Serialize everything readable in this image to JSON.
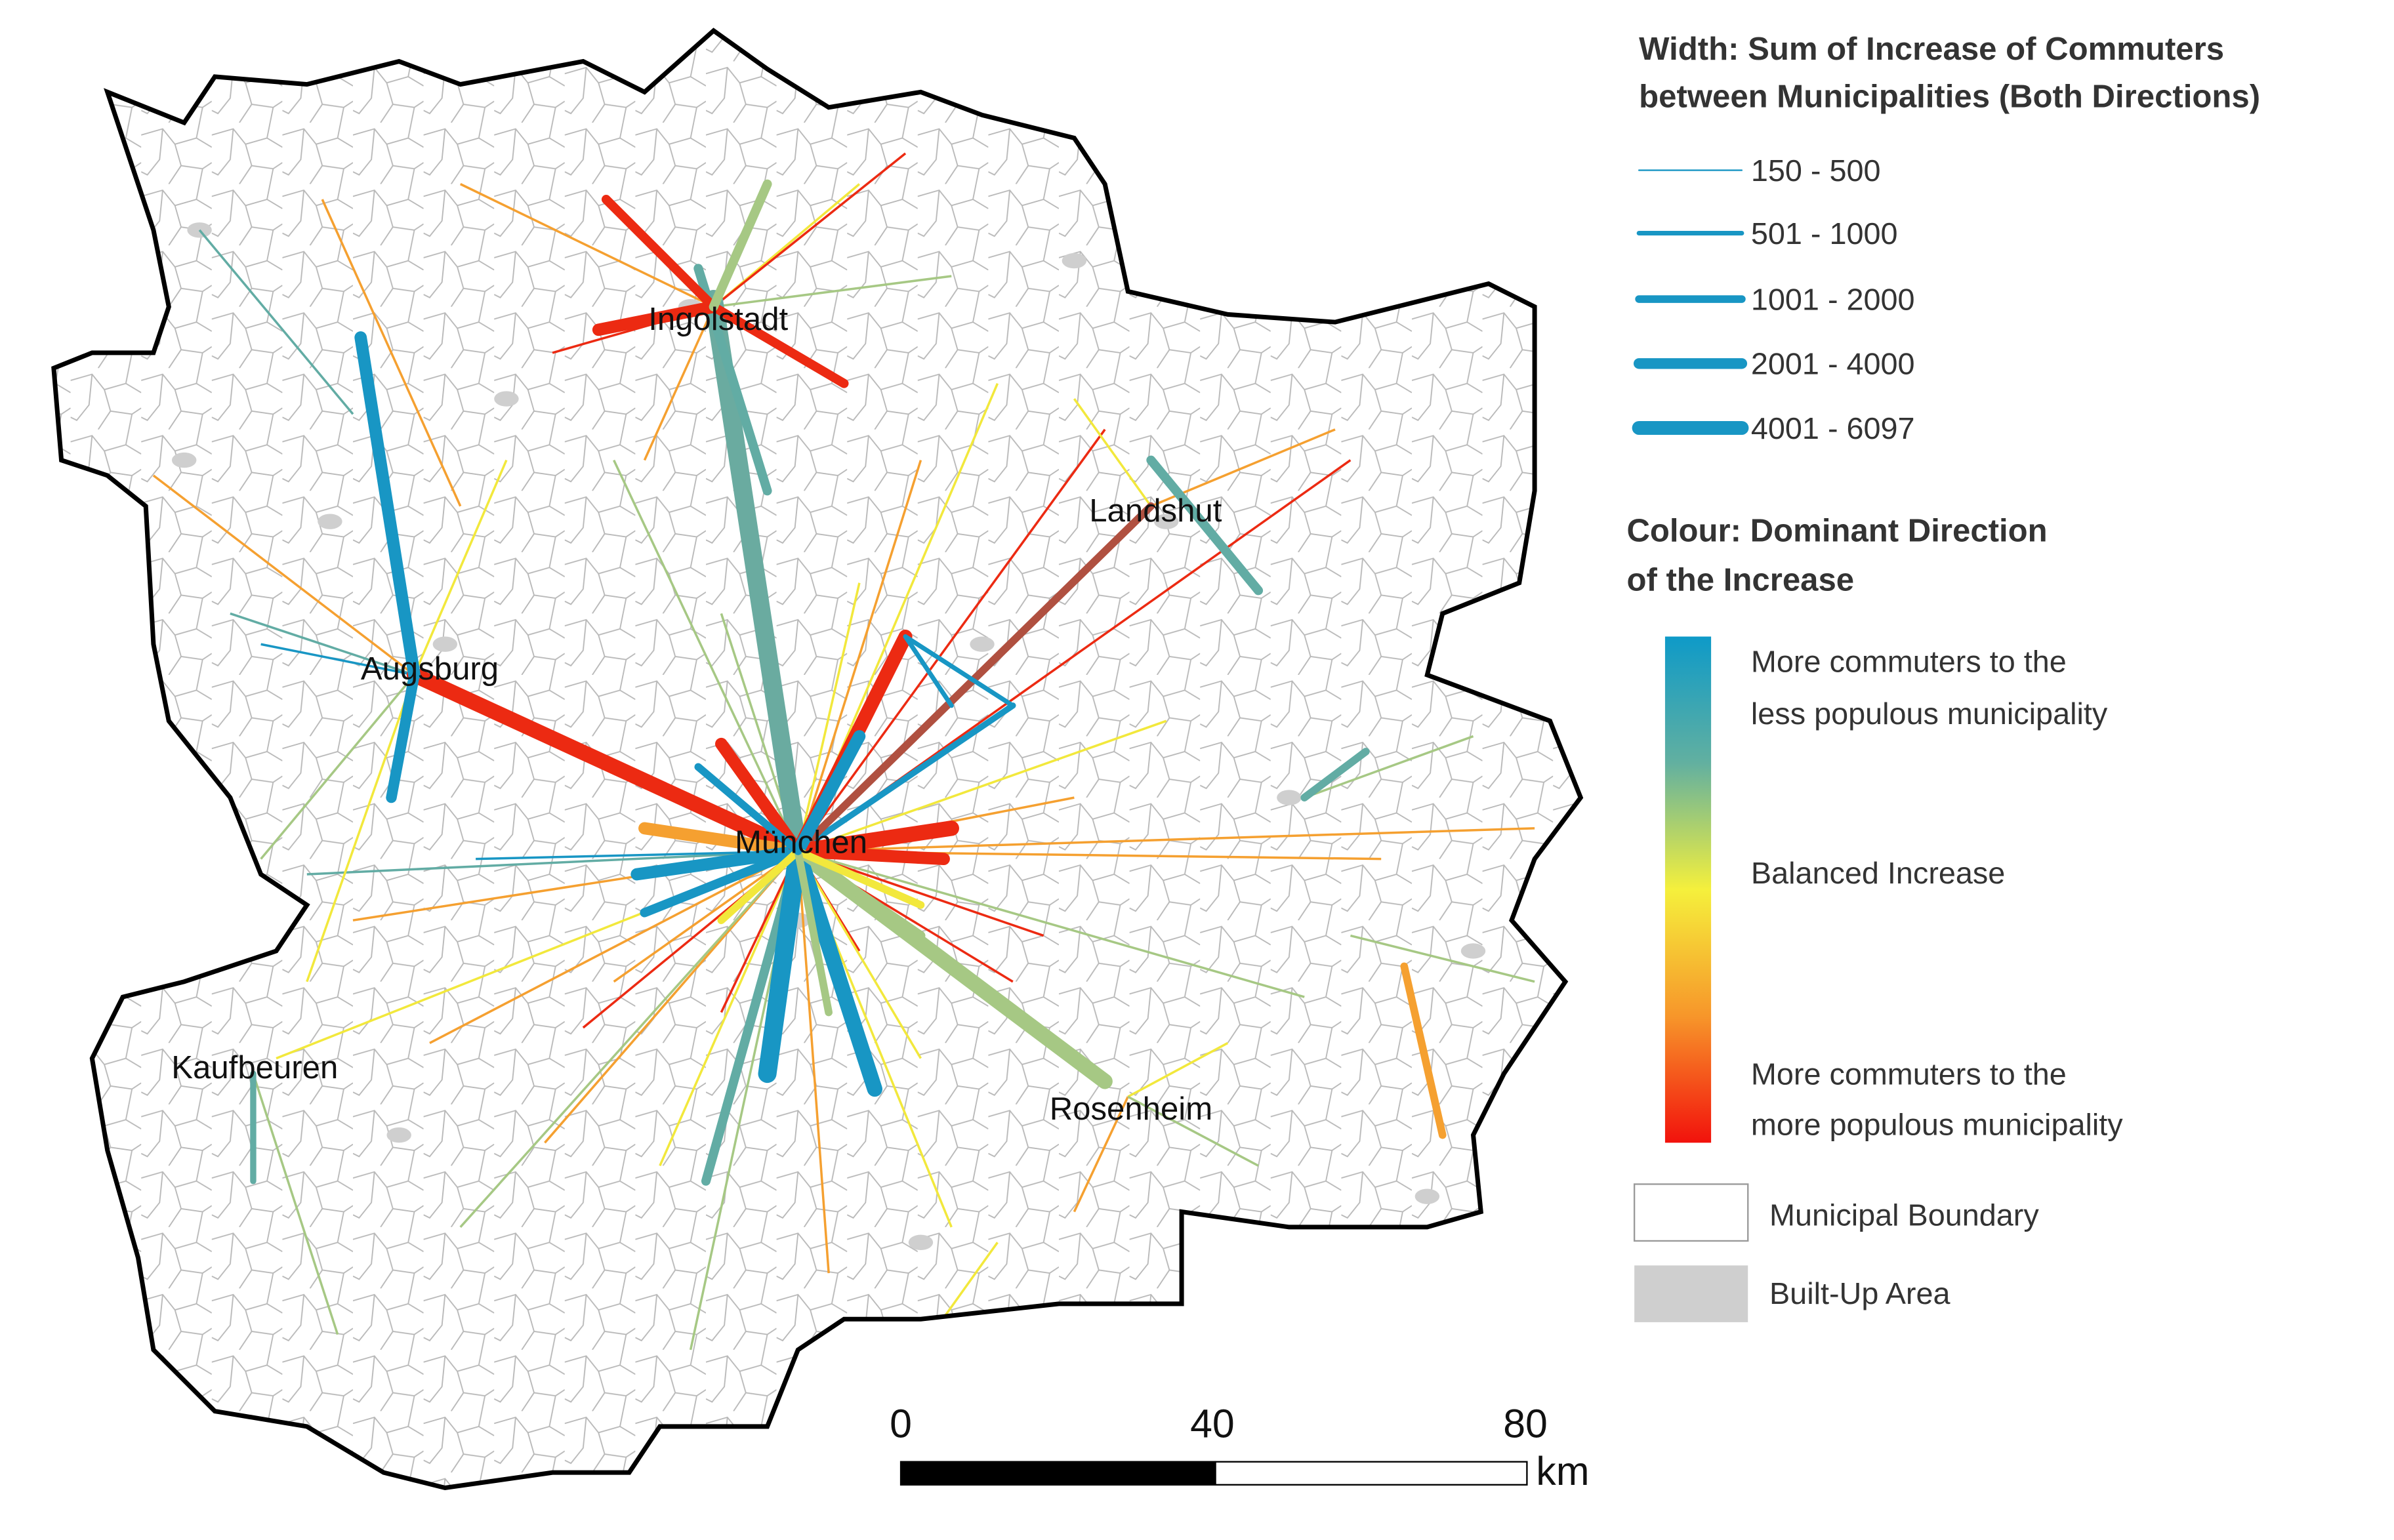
{
  "map": {
    "cities": [
      "Ingolstadt",
      "Landshut",
      "Augsburg",
      "München",
      "Kaufbeuren",
      "Rosenheim"
    ],
    "legend": {
      "width_title": [
        "Width: Sum of Increase of Commuters",
        "between Municipalities (Both Directions)"
      ],
      "width_classes": [
        "150 - 500",
        "501 - 1000",
        "1001 - 2000",
        "2001 - 4000",
        "4001 - 6097"
      ],
      "colour_title": [
        "Colour: Dominant Direction",
        "of the Increase"
      ],
      "colour_labels": {
        "top": [
          "More commuters to the",
          "less populous municipality"
        ],
        "middle": "Balanced Increase",
        "bottom": [
          "More commuters to the",
          "more populous municipality"
        ]
      },
      "boundary": "Municipal Boundary",
      "built_up": "Built-Up Area"
    },
    "scale_bar": {
      "ticks": [
        "0",
        "40",
        "80"
      ],
      "unit": "km"
    }
  }
}
